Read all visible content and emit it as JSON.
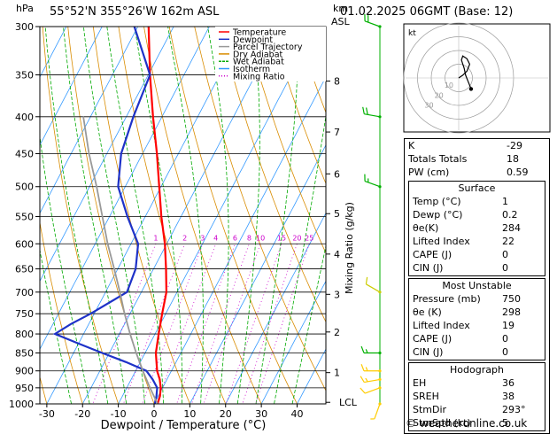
{
  "header": {
    "location": "55°52'N 355°26'W 162m ASL",
    "datetime": "01.02.2025 06GMT (Base: 12)",
    "left_unit": "hPa",
    "right_unit_top": "km",
    "right_unit_bottom": "ASL"
  },
  "chart_data": {
    "type": "skew-t log-p",
    "xlabel": "Dewpoint / Temperature (°C)",
    "ylabel_left": "hPa",
    "ylabel_right": "Mixing Ratio (g/kg)",
    "pressure_levels": [
      300,
      350,
      400,
      450,
      500,
      550,
      600,
      650,
      700,
      750,
      800,
      850,
      900,
      950,
      1000
    ],
    "temperature_ticks": [
      -30,
      -20,
      -10,
      0,
      10,
      20,
      30,
      40
    ],
    "xlim": [
      -40,
      40
    ],
    "ylim": [
      1000,
      300
    ],
    "altitude_km": [
      {
        "km": "8",
        "p": 357
      },
      {
        "km": "7",
        "p": 420
      },
      {
        "km": "6",
        "p": 480
      },
      {
        "km": "5",
        "p": 545
      },
      {
        "km": "4",
        "p": 620
      },
      {
        "km": "3",
        "p": 705
      },
      {
        "km": "2",
        "p": 795
      },
      {
        "km": "1",
        "p": 905
      },
      {
        "km": "LCL",
        "p": 995
      }
    ],
    "mixing_ratio_labels": [
      "1",
      "2",
      "3",
      "4",
      "6",
      "8",
      "10",
      "15",
      "20",
      "25"
    ],
    "mixing_ratio_values": [
      1,
      2,
      3,
      4,
      6,
      8,
      10,
      15,
      20,
      25
    ],
    "legend": [
      {
        "name": "Temperature",
        "color": "#ff0000"
      },
      {
        "name": "Dewpoint",
        "color": "#1e32c8"
      },
      {
        "name": "Parcel Trajectory",
        "color": "#999999"
      },
      {
        "name": "Dry Adiabat",
        "color": "#d98c00"
      },
      {
        "name": "Wet Adiabat",
        "color": "#00aa00"
      },
      {
        "name": "Isotherm",
        "color": "#3399ff"
      },
      {
        "name": "Mixing Ratio",
        "color": "#cc00cc"
      }
    ],
    "series": [
      {
        "name": "Temperature",
        "points": [
          [
            1000,
            1
          ],
          [
            975,
            0.5
          ],
          [
            950,
            -0.5
          ],
          [
            925,
            -2
          ],
          [
            900,
            -4
          ],
          [
            850,
            -7
          ],
          [
            800,
            -9
          ],
          [
            750,
            -11
          ],
          [
            700,
            -13
          ],
          [
            650,
            -16.5
          ],
          [
            600,
            -20.5
          ],
          [
            550,
            -25.5
          ],
          [
            500,
            -30.5
          ],
          [
            450,
            -36
          ],
          [
            400,
            -42.5
          ],
          [
            350,
            -49.5
          ],
          [
            300,
            -57
          ]
        ]
      },
      {
        "name": "Dewpoint",
        "points": [
          [
            1000,
            0.2
          ],
          [
            975,
            -0.5
          ],
          [
            950,
            -1.5
          ],
          [
            925,
            -4
          ],
          [
            900,
            -7
          ],
          [
            875,
            -14
          ],
          [
            850,
            -22
          ],
          [
            825,
            -30
          ],
          [
            800,
            -38
          ],
          [
            775,
            -35
          ],
          [
            750,
            -31
          ],
          [
            700,
            -24
          ],
          [
            650,
            -25
          ],
          [
            600,
            -28
          ],
          [
            550,
            -35
          ],
          [
            500,
            -42
          ],
          [
            450,
            -46
          ],
          [
            400,
            -48
          ],
          [
            350,
            -49.5
          ],
          [
            300,
            -61
          ]
        ]
      },
      {
        "name": "Parcel Trajectory",
        "points": [
          [
            1000,
            1
          ],
          [
            950,
            -3.5
          ],
          [
            900,
            -8
          ],
          [
            850,
            -12.5
          ],
          [
            800,
            -17
          ],
          [
            750,
            -21.5
          ],
          [
            700,
            -26
          ],
          [
            650,
            -31
          ],
          [
            600,
            -36.5
          ],
          [
            550,
            -42
          ],
          [
            500,
            -48
          ],
          [
            450,
            -55
          ],
          [
            400,
            -62
          ]
        ]
      }
    ]
  },
  "wind_barbs": [
    {
      "p": 1000,
      "dir": 200,
      "kt": 5
    },
    {
      "p": 950,
      "dir": 250,
      "kt": 10
    },
    {
      "p": 925,
      "dir": 260,
      "kt": 15
    },
    {
      "p": 900,
      "dir": 270,
      "kt": 15
    },
    {
      "p": 850,
      "dir": 270,
      "kt": 15
    },
    {
      "p": 700,
      "dir": 300,
      "kt": 10
    },
    {
      "p": 500,
      "dir": 290,
      "kt": 15
    },
    {
      "p": 400,
      "dir": 280,
      "kt": 20
    },
    {
      "p": 300,
      "dir": 290,
      "kt": 20
    }
  ],
  "hodograph": {
    "label": "kt",
    "ring_labels": [
      "10",
      "20",
      "30"
    ],
    "points_kt": [
      [
        0,
        0
      ],
      [
        3,
        2
      ],
      [
        6,
        5
      ],
      [
        8,
        10
      ],
      [
        6,
        14
      ],
      [
        3,
        16
      ],
      [
        2,
        13
      ],
      [
        4,
        7
      ],
      [
        5,
        2
      ],
      [
        7,
        -3
      ],
      [
        9,
        -8
      ]
    ]
  },
  "indices": [
    {
      "label": "K",
      "value": "-29"
    },
    {
      "label": "Totals Totals",
      "value": "18"
    },
    {
      "label": "PW (cm)",
      "value": "0.59"
    }
  ],
  "surface": {
    "title": "Surface",
    "rows": [
      {
        "label": "Temp (°C)",
        "value": "1"
      },
      {
        "label": "Dewp (°C)",
        "value": "0.2"
      },
      {
        "label": "θe(K)",
        "value": "284"
      },
      {
        "label": "Lifted Index",
        "value": "22"
      },
      {
        "label": "CAPE (J)",
        "value": "0"
      },
      {
        "label": "CIN (J)",
        "value": "0"
      }
    ]
  },
  "most_unstable": {
    "title": "Most Unstable",
    "rows": [
      {
        "label": "Pressure (mb)",
        "value": "750"
      },
      {
        "label": "θe (K)",
        "value": "298"
      },
      {
        "label": "Lifted Index",
        "value": "19"
      },
      {
        "label": "CAPE (J)",
        "value": "0"
      },
      {
        "label": "CIN (J)",
        "value": "0"
      }
    ]
  },
  "hodograph_table": {
    "title": "Hodograph",
    "rows": [
      {
        "label": "EH",
        "value": "36"
      },
      {
        "label": "SREH",
        "value": "38"
      },
      {
        "label": "StmDir",
        "value": "293°"
      },
      {
        "label": "StmSpd (kt)",
        "value": "5"
      }
    ]
  },
  "credit": "© weatheronline.co.uk"
}
